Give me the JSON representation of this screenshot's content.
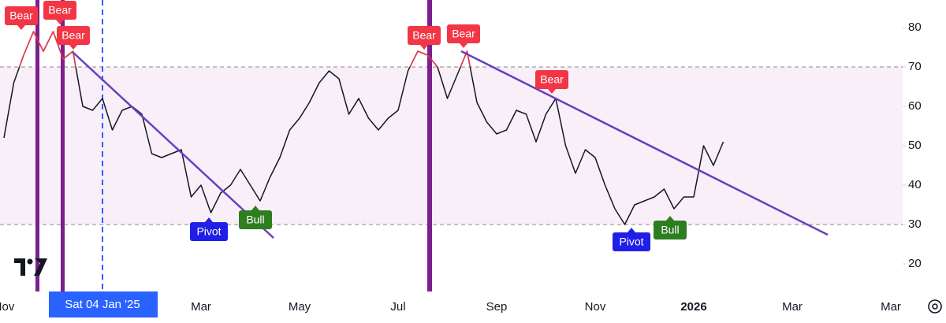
{
  "chart_data": {
    "type": "line",
    "categories": [
      "Nov",
      null,
      null,
      null,
      null,
      null,
      null,
      null,
      null,
      null,
      "Sat 04 Jan '25",
      null,
      null,
      null,
      null,
      null,
      null,
      null,
      null,
      null,
      "Mar",
      null,
      null,
      null,
      null,
      null,
      null,
      null,
      null,
      null,
      "May",
      null,
      null,
      null,
      null,
      null,
      null,
      null,
      null,
      null,
      "Jul",
      null,
      null,
      null,
      null,
      null,
      null,
      null,
      null,
      null,
      "Sep",
      null,
      null,
      null,
      null,
      null,
      null,
      null,
      null,
      null,
      "Nov",
      null,
      null,
      null,
      null,
      null,
      null,
      null,
      null,
      null,
      "2026",
      null,
      null,
      null,
      null,
      null,
      null,
      null,
      null,
      null,
      "Mar",
      null,
      null,
      null,
      null,
      null,
      null,
      null,
      null,
      null,
      "Mar",
      null
    ],
    "highlight_category": 10,
    "series": [
      {
        "color": "#131722",
        "values": [
          52,
          66,
          73,
          79,
          74,
          79,
          72,
          74,
          60,
          59,
          62,
          54,
          59,
          60,
          58,
          48,
          47,
          48,
          49,
          37,
          40,
          33,
          38,
          40,
          44,
          40,
          36,
          42,
          47,
          54,
          57,
          61,
          66,
          69,
          67,
          58,
          62,
          57,
          54,
          57,
          59,
          69,
          74,
          73,
          70,
          62,
          68,
          74,
          61,
          56,
          53,
          54,
          59,
          58,
          51,
          58,
          62,
          50,
          43,
          49,
          47,
          40,
          34,
          30,
          35,
          36,
          37,
          39,
          34,
          37,
          37,
          50,
          45,
          51,
          null,
          null,
          null,
          null,
          null,
          null,
          null,
          null,
          null,
          null,
          null,
          null,
          null,
          null,
          null,
          null,
          null,
          null
        ]
      }
    ],
    "overbought_color": "#f23645",
    "ylim": [
      13,
      87
    ],
    "yticks": [
      20,
      30,
      40,
      50,
      60,
      70,
      80
    ],
    "band": [
      30,
      70
    ],
    "band_color": "#f8eff9",
    "annotations": [
      {
        "text": "Bear",
        "color": "#f23645"
      },
      {
        "text": "Bear",
        "color": "#f23645"
      },
      {
        "text": "Bear",
        "color": "#f23645"
      },
      {
        "text": "Pivot",
        "color": "#1f1fe8"
      },
      {
        "text": "Bull",
        "color": "#2e7d1f"
      },
      {
        "text": "Bear",
        "color": "#f23645"
      },
      {
        "text": "Bear",
        "color": "#f23645"
      },
      {
        "text": "Bear",
        "color": "#f23645"
      },
      {
        "text": "Pivot",
        "color": "#1f1fe8"
      },
      {
        "text": "Bull",
        "color": "#2e7d1f"
      }
    ]
  }
}
